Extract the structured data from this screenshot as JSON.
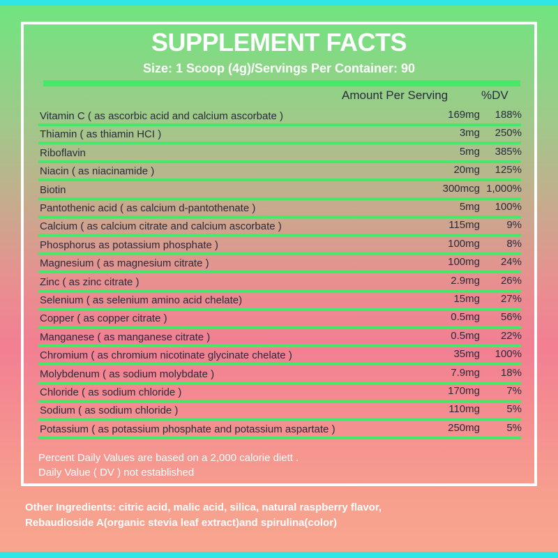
{
  "title": "SUPPLEMENT FACTS",
  "subtitle": "Size: 1 Scoop (4g)/Servings Per Container: 90",
  "header": {
    "amount": "Amount Per Serving",
    "dv": "%DV"
  },
  "table": {
    "rows": [
      [
        "Vitamin C ( as ascorbic acid and calcium ascorbate )",
        "169mg",
        "188%"
      ],
      [
        "Thiamin ( as thiamin HCI )",
        "3mg",
        "250%"
      ],
      [
        "Riboflavin",
        "5mg",
        "385%"
      ],
      [
        "Niacin ( as niacinamide )",
        "20mg",
        "125%"
      ],
      [
        "Biotin",
        "300mcg",
        "1,000%"
      ],
      [
        "Pantothenic acid ( as calcium d-pantothenate )",
        "5mg",
        "100%"
      ],
      [
        "Calcium ( as calcium citrate and calcium ascorbate )",
        "115mg",
        "9%"
      ],
      [
        "Phosphorus as potassium phosphate )",
        "100mg",
        "8%"
      ],
      [
        "Magnesium ( as magnesium citrate )",
        "100mg",
        "24%"
      ],
      [
        "Zinc ( as zinc citrate )",
        "2.9mg",
        "26%"
      ],
      [
        "Selenium ( as selenium amino acid chelate)",
        "15mg",
        "27%"
      ],
      [
        "Copper ( as copper citrate )",
        "0.5mg",
        "56%"
      ],
      [
        "Manganese ( as manganese citrate )",
        "0.5mg",
        "22%"
      ],
      [
        "Chromium ( as chromium nicotinate glycinate chelate )",
        "35mg",
        "100%"
      ],
      [
        "Molybdenum ( as sodium molybdate )",
        "7.9mg",
        "18%"
      ],
      [
        "Chloride ( as sodium chloride )",
        "170mg",
        "7%"
      ],
      [
        "Sodium ( as sodium chloride )",
        "110mg",
        "5%"
      ],
      [
        "Potassium ( as potassium phosphate and potassium aspartate )",
        "250mg",
        "5%"
      ]
    ]
  },
  "footnotes": [
    "Percent Daily Values are based on a 2,000 calorie diett .",
    "Daily Value ( DV ) not established"
  ],
  "other_ingredients": [
    "Other Ingredients: citric acid, malic acid, silica, natural raspberry flavor,",
    "Rebaudioside A(organic stevia leaf extract)and spirulina(color)"
  ]
}
